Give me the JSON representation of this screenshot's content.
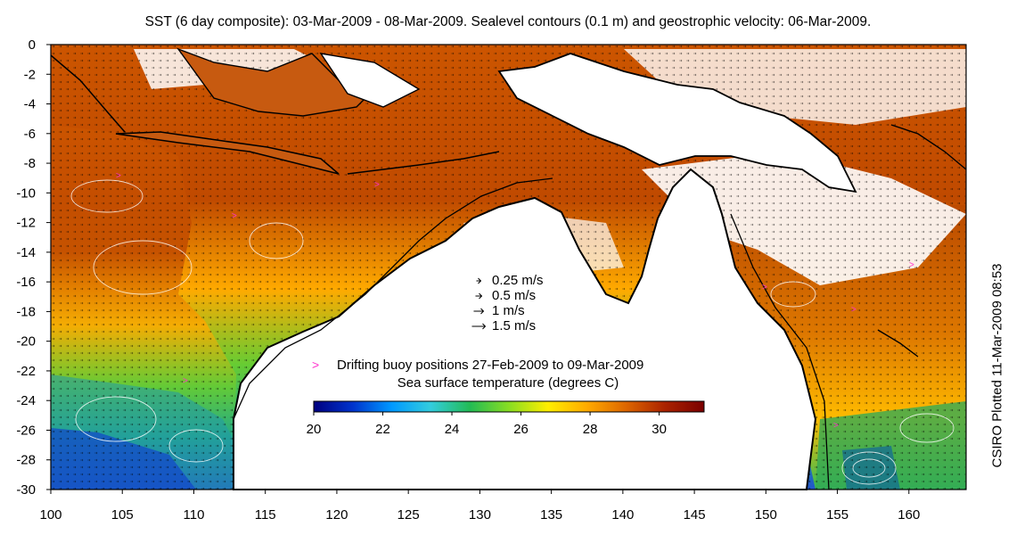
{
  "title": "SST (6 day composite): 03-Mar-2009 - 08-Mar-2009. Sealevel contours (0.1 m) and geostrophic velocity: 06-Mar-2009.",
  "side_label": "CSIRO Plotted 11-Mar-2009 08:53",
  "x_ticks": [
    "100",
    "105",
    "110",
    "115",
    "120",
    "125",
    "130",
    "135",
    "140",
    "145",
    "150",
    "155",
    "160"
  ],
  "y_ticks": [
    "0",
    "-2",
    "-4",
    "-6",
    "-8",
    "-10",
    "-12",
    "-14",
    "-16",
    "-18",
    "-20",
    "-22",
    "-24",
    "-26",
    "-28",
    "-30"
  ],
  "lon_range": [
    100,
    164
  ],
  "lat_range": [
    -30,
    0
  ],
  "velocity_legend": [
    {
      "label": "0.25 m/s",
      "speed": 0.25
    },
    {
      "label": "0.5 m/s",
      "speed": 0.5
    },
    {
      "label": "1 m/s",
      "speed": 1
    },
    {
      "label": "1.5 m/s",
      "speed": 1.5
    }
  ],
  "buoy_legend": {
    "symbol": ">",
    "label": "Drifting buoy positions 27-Feb-2009 to 09-Mar-2009",
    "color": "#ff33cc"
  },
  "colorbar": {
    "title": "Sea surface temperature (degrees C)",
    "ticks": [
      "20",
      "22",
      "24",
      "26",
      "28",
      "30"
    ],
    "range": [
      20,
      31.3
    ],
    "colors": [
      "#00007f",
      "#0033cc",
      "#0099ff",
      "#33ccdd",
      "#22bb55",
      "#88dd22",
      "#ffee00",
      "#ffaa00",
      "#dd6600",
      "#aa2200",
      "#7a0000"
    ]
  }
}
